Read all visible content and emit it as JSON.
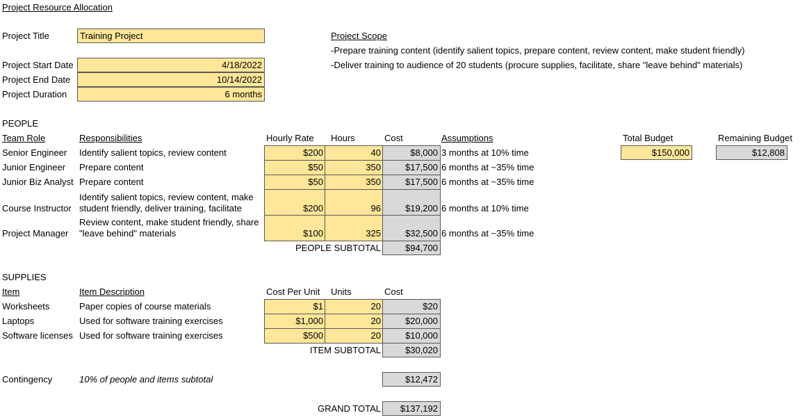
{
  "title": "Project Resource Allocation",
  "project": {
    "title_label": "Project Title",
    "title": "Training Project",
    "start_label": "Project Start Date",
    "start": "4/18/2022",
    "end_label": "Project End Date",
    "end": "10/14/2022",
    "duration_label": "Project Duration",
    "duration": "6 months"
  },
  "scope": {
    "heading": "Project Scope",
    "items": [
      "-Prepare training content (identify salient topics, prepare content, review content, make student friendly)",
      "-Deliver training to audience of 20 students (procure supplies, facilitate, share \"leave behind\" materials)"
    ]
  },
  "budget": {
    "total_label": "Total Budget",
    "total": "$150,000",
    "remaining_label": "Remaining Budget",
    "remaining": "$12,808"
  },
  "people": {
    "heading": "PEOPLE",
    "columns": [
      "Team Role",
      "Responsibilities",
      "Hourly Rate",
      "Hours",
      "Cost",
      "Assumptions"
    ],
    "rows": [
      [
        "Senior Engineer",
        "Identify salient topics, review content",
        "$200",
        40,
        "$8,000",
        "3 months at 10% time"
      ],
      [
        "Junior Engineer",
        "Prepare content",
        "$50",
        350,
        "$17,500",
        "6 months at ~35% time"
      ],
      [
        "Junior Biz Analyst",
        "Prepare content",
        "$50",
        350,
        "$17,500",
        "6 months at ~35% time"
      ],
      [
        "Course Instructor",
        "Identify salient topics, review content, make student friendly, deliver training, facilitate",
        "$200",
        96,
        "$19,200",
        "6 months at 10% time"
      ],
      [
        "Project Manager",
        "Review content, make student friendly, share \"leave behind\" materials",
        "$100",
        325,
        "$32,500",
        "6 months at ~35% time"
      ]
    ],
    "subtotal_label": "PEOPLE SUBTOTAL",
    "subtotal": "$94,700"
  },
  "supplies": {
    "heading": "SUPPLIES",
    "columns": [
      "Item",
      "Item Description",
      "Cost Per Unit",
      "Units",
      "Cost"
    ],
    "rows": [
      [
        "Worksheets",
        "Paper copies of course materials",
        "$1",
        20,
        "$20"
      ],
      [
        "Laptops",
        "Used for software training exercises",
        "$1,000",
        20,
        "$20,000"
      ],
      [
        "Software licenses",
        "Used for software training exercises",
        "$500",
        20,
        "$10,000"
      ]
    ],
    "subtotal_label": "ITEM SUBTOTAL",
    "subtotal": "$30,020"
  },
  "contingency": {
    "label": "Contingency",
    "description": "10% of people and items subtotal",
    "value": "$12,472"
  },
  "grand_total": {
    "label": "GRAND TOTAL",
    "value": "$137,192"
  }
}
